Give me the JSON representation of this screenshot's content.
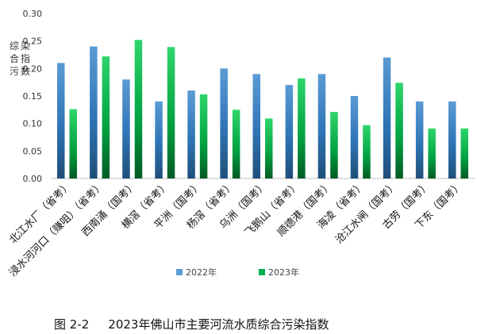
{
  "chart_data": {
    "type": "bar",
    "title": "",
    "ylabel": "综合污染指数",
    "xlabel": "",
    "ylim": [
      0,
      0.3
    ],
    "yticks": [
      "0.00",
      "0.05",
      "0.10",
      "0.15",
      "0.20",
      "0.25",
      "0.30"
    ],
    "grid": false,
    "legend_position": "bottom",
    "categories": [
      "北江水厂（省考）",
      "浸水河河口（赚咀）（省考）",
      "西南涌（国考）",
      "横滘（省考）",
      "平洲（国考）",
      "杨滘（省考）",
      "乌洲（国考）",
      "飞鹅山（省考）",
      "顺德港（国考）",
      "海凌（省考）",
      "沧江水闸（国考）",
      "古劳（国考）",
      "下东（国考）"
    ],
    "series": [
      {
        "name": "2022年",
        "color": "#5b9bd5",
        "values": [
          0.21,
          0.24,
          0.18,
          0.14,
          0.16,
          0.2,
          0.19,
          0.17,
          0.19,
          0.15,
          0.22,
          0.14,
          0.14
        ]
      },
      {
        "name": "2023年",
        "color": "#00b050",
        "values": [
          0.126,
          0.222,
          0.252,
          0.239,
          0.153,
          0.125,
          0.109,
          0.182,
          0.121,
          0.097,
          0.174,
          0.091,
          0.091
        ]
      }
    ]
  },
  "caption": {
    "figure_number": "图 2-2",
    "text": "2023年佛山市主要河流水质综合污染指数"
  }
}
